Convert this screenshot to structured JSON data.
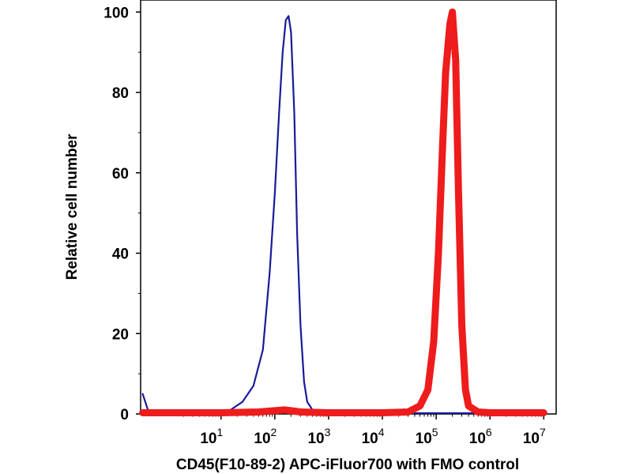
{
  "chart_data": {
    "type": "line",
    "title": "",
    "xlabel": "CD45(F10-89-2) APC-iFluor700 with FMO control",
    "ylabel": "Relative cell number",
    "x_scale": "log",
    "xlim": [
      0.32,
      17000000
    ],
    "ylim": [
      0,
      103
    ],
    "grid": false,
    "x_ticks": [
      {
        "value": 10,
        "base": "10",
        "exp": "1"
      },
      {
        "value": 100,
        "base": "10",
        "exp": "2"
      },
      {
        "value": 1000,
        "base": "10",
        "exp": "3"
      },
      {
        "value": 10000,
        "base": "10",
        "exp": "4"
      },
      {
        "value": 100000,
        "base": "10",
        "exp": "5"
      },
      {
        "value": 1000000,
        "base": "10",
        "exp": "6"
      },
      {
        "value": 10000000,
        "base": "10",
        "exp": "7"
      }
    ],
    "y_ticks": [
      {
        "value": 0,
        "label": "0"
      },
      {
        "value": 20,
        "label": "20"
      },
      {
        "value": 40,
        "label": "40"
      },
      {
        "value": 60,
        "label": "60"
      },
      {
        "value": 80,
        "label": "80"
      },
      {
        "value": 100,
        "label": "100"
      }
    ],
    "series": [
      {
        "color": "#1a1a99",
        "x": [
          0.35,
          0.45,
          0.6,
          1,
          3,
          8,
          15,
          25,
          40,
          60,
          80,
          100,
          120,
          140,
          160,
          180,
          200,
          230,
          260,
          300,
          350,
          400,
          500,
          700,
          1000,
          2000,
          10000,
          100000,
          1000000,
          10000000
        ],
        "y": [
          5,
          0.5,
          0.2,
          0.2,
          0.2,
          0.4,
          1,
          3,
          7,
          16,
          35,
          55,
          75,
          90,
          98,
          99,
          95,
          75,
          45,
          22,
          8,
          3,
          1,
          0.3,
          0.2,
          0.2,
          0.2,
          0.2,
          0.2,
          0.2
        ]
      },
      {
        "color": "#ee1c1c",
        "x": [
          0.35,
          1,
          10,
          50,
          100,
          150,
          200,
          300,
          1000,
          10000,
          30000,
          50000,
          70000,
          90000,
          110000,
          130000,
          150000,
          180000,
          200000,
          230000,
          260000,
          300000,
          350000,
          400000,
          600000,
          1000000,
          10000000
        ],
        "y": [
          0.3,
          0.3,
          0.3,
          0.5,
          0.8,
          1,
          0.8,
          0.5,
          0.3,
          0.3,
          0.5,
          2,
          6,
          18,
          40,
          65,
          85,
          97,
          100,
          88,
          55,
          22,
          6,
          2,
          0.5,
          0.3,
          0.3
        ]
      }
    ]
  }
}
